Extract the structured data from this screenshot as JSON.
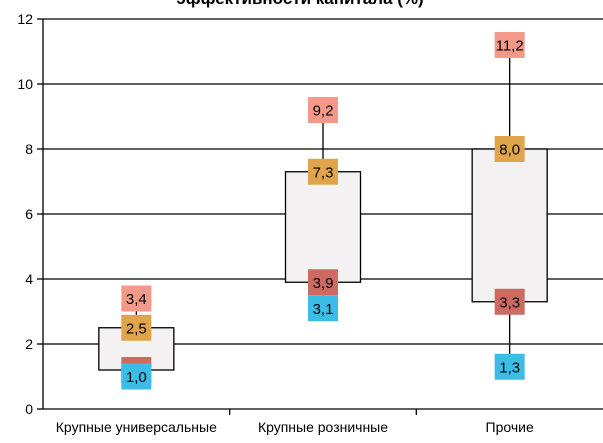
{
  "chart_data": {
    "type": "box",
    "title": "эффективности капитала (%)",
    "ylim": [
      0,
      12
    ],
    "yticks": [
      0,
      2,
      4,
      6,
      8,
      10,
      12
    ],
    "ytick_labels": [
      "0",
      "2",
      "4",
      "6",
      "8",
      "10",
      "12"
    ],
    "grid": true,
    "categories": [
      "Крупные универсальные",
      "Крупные розничные",
      "Прочие"
    ],
    "series": [
      {
        "key": "max",
        "values": [
          3.4,
          9.2,
          11.2
        ],
        "labels": [
          "3,4",
          "9,2",
          "11,2"
        ],
        "color": "#f4998a"
      },
      {
        "key": "q3",
        "values": [
          2.5,
          7.3,
          8.0
        ],
        "labels": [
          "2,5",
          "7,3",
          "8,0"
        ],
        "color": "#e0a44a"
      },
      {
        "key": "q1",
        "values": [
          1.2,
          3.9,
          3.3
        ],
        "labels": [
          "1,2",
          "3,9",
          "3,3"
        ],
        "color": "#cd6b63"
      },
      {
        "key": "min",
        "values": [
          1.0,
          3.1,
          1.3
        ],
        "labels": [
          "1,0",
          "3,1",
          "1,3"
        ],
        "color": "#3cbde8"
      }
    ],
    "box_fill": "#f3f1f1"
  }
}
